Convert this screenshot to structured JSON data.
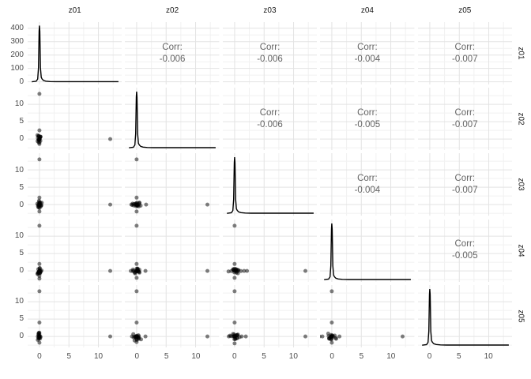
{
  "figure": {
    "kind": "scatterplot-matrix",
    "background": "#ffffff"
  },
  "colors": {
    "grid_major": "#e3e3e3",
    "grid_minor": "#f1f1f1",
    "axis_text": "#4d4d4d",
    "strip_text": "#1a1a1a",
    "corr_text": "#646464",
    "point": "#000000",
    "density_line": "#000000"
  },
  "chart_data": {
    "type": "scatter",
    "subtype": "pairs-matrix",
    "title": "",
    "variables": [
      "z01",
      "z02",
      "z03",
      "z04",
      "z05"
    ],
    "strip_labels_top": [
      "z01",
      "z02",
      "z03",
      "z04",
      "z05"
    ],
    "strip_labels_right": [
      "z01",
      "z02",
      "z03",
      "z04",
      "z05"
    ],
    "layout": {
      "diagonal": "density",
      "upper": "correlation",
      "lower": "scatter",
      "grid": "major+minor",
      "legend": "none"
    },
    "x_ticks": [
      0,
      5,
      10
    ],
    "y_ticks_scatter": [
      0,
      5,
      10
    ],
    "y_ticks_first_row": [
      0,
      100,
      200,
      300,
      400
    ],
    "x_domain": [
      -2,
      14
    ],
    "y_domain_scatter": [
      -3.2,
      14.8
    ],
    "y_domain_first_row": [
      -21,
      446
    ],
    "x_minor_ticks": [
      -2.5,
      2.5,
      7.5,
      12.5
    ],
    "y_minor_ticks_scatter": [
      -2.5,
      2.5,
      7.5,
      12.5
    ],
    "y_minor_ticks_first_row": [
      50,
      150,
      250,
      350
    ],
    "corr_label": "Corr:",
    "correlations": [
      {
        "x": "z02",
        "y": "z01",
        "value": "-0.006"
      },
      {
        "x": "z03",
        "y": "z01",
        "value": "-0.006"
      },
      {
        "x": "z04",
        "y": "z01",
        "value": "-0.004"
      },
      {
        "x": "z05",
        "y": "z01",
        "value": "-0.007"
      },
      {
        "x": "z03",
        "y": "z02",
        "value": "-0.006"
      },
      {
        "x": "z04",
        "y": "z02",
        "value": "-0.005"
      },
      {
        "x": "z05",
        "y": "z02",
        "value": "-0.007"
      },
      {
        "x": "z04",
        "y": "z03",
        "value": "-0.004"
      },
      {
        "x": "z05",
        "y": "z03",
        "value": "-0.007"
      },
      {
        "x": "z05",
        "y": "z04",
        "value": "-0.005"
      }
    ],
    "diagonals": [
      {
        "var": "z01",
        "type": "density",
        "peak_x": 0,
        "peak_value": 420,
        "own_y_axis": true
      },
      {
        "var": "z02",
        "type": "density",
        "peak_x": 0
      },
      {
        "var": "z03",
        "type": "density",
        "peak_x": 0
      },
      {
        "var": "z04",
        "type": "density",
        "peak_x": 0
      },
      {
        "var": "z05",
        "type": "density",
        "peak_x": 0
      }
    ],
    "density_shape": [
      [
        -1.3,
        0
      ],
      [
        -0.55,
        0.01
      ],
      [
        -0.3,
        0.05
      ],
      [
        -0.17,
        0.25
      ],
      [
        -0.06,
        0.9
      ],
      [
        0,
        1
      ],
      [
        0.06,
        0.9
      ],
      [
        0.17,
        0.25
      ],
      [
        0.3,
        0.08
      ],
      [
        0.45,
        0.05
      ],
      [
        0.7,
        0.025
      ],
      [
        1.1,
        0.012
      ],
      [
        1.8,
        0.005
      ],
      [
        2.8,
        0.003
      ],
      [
        13.4,
        0.003
      ]
    ],
    "scatter_panels": [
      {
        "y": "z02",
        "x": "z01",
        "cluster": {
          "cx": 0,
          "cy": 0,
          "n": 18,
          "sx": 0.3,
          "sy": 1.0
        },
        "outliers": [
          [
            0,
            13
          ],
          [
            0,
            2.5
          ],
          [
            12,
            0
          ],
          [
            0,
            -1.4
          ]
        ]
      },
      {
        "y": "z03",
        "x": "z01",
        "cluster": {
          "cx": 0,
          "cy": 0,
          "n": 18,
          "sx": 0.3,
          "sy": 1.1
        },
        "outliers": [
          [
            0,
            13
          ],
          [
            0,
            2
          ],
          [
            12,
            0
          ],
          [
            0,
            -2
          ]
        ]
      },
      {
        "y": "z03",
        "x": "z02",
        "cluster": {
          "cx": 0,
          "cy": 0,
          "n": 18,
          "sx": 0.6,
          "sy": 0.8
        },
        "outliers": [
          [
            0,
            13
          ],
          [
            0,
            2
          ],
          [
            1.6,
            0
          ],
          [
            -0.9,
            0
          ],
          [
            12,
            0
          ],
          [
            0,
            -2
          ]
        ]
      },
      {
        "y": "z04",
        "x": "z01",
        "cluster": {
          "cx": 0,
          "cy": 0,
          "n": 18,
          "sx": 0.3,
          "sy": 1.0
        },
        "outliers": [
          [
            0,
            13
          ],
          [
            0,
            2
          ],
          [
            0,
            -1.4
          ],
          [
            0,
            -2.2
          ],
          [
            12,
            0
          ]
        ]
      },
      {
        "y": "z04",
        "x": "z02",
        "cluster": {
          "cx": 0,
          "cy": 0,
          "n": 18,
          "sx": 0.6,
          "sy": 0.8
        },
        "outliers": [
          [
            0,
            13
          ],
          [
            0,
            2
          ],
          [
            -1,
            0
          ],
          [
            1.5,
            0
          ],
          [
            0,
            -2
          ],
          [
            12,
            0
          ]
        ]
      },
      {
        "y": "z04",
        "x": "z03",
        "cluster": {
          "cx": 0,
          "cy": 0,
          "n": 18,
          "sx": 0.8,
          "sy": 0.7
        },
        "outliers": [
          [
            0,
            13
          ],
          [
            0,
            2
          ],
          [
            1.6,
            0
          ],
          [
            2.1,
            0
          ],
          [
            0,
            -2
          ],
          [
            12,
            0
          ]
        ]
      },
      {
        "y": "z05",
        "x": "z01",
        "cluster": {
          "cx": 0,
          "cy": 0,
          "n": 18,
          "sx": 0.3,
          "sy": 1.2
        },
        "outliers": [
          [
            0,
            13
          ],
          [
            0,
            4
          ],
          [
            12,
            0
          ],
          [
            0,
            -1.8
          ]
        ]
      },
      {
        "y": "z05",
        "x": "z02",
        "cluster": {
          "cx": 0,
          "cy": 0,
          "n": 18,
          "sx": 0.6,
          "sy": 0.9
        },
        "outliers": [
          [
            0,
            13
          ],
          [
            0,
            4
          ],
          [
            1.5,
            0
          ],
          [
            -0.8,
            0
          ],
          [
            0,
            -1.6
          ],
          [
            12,
            0
          ]
        ]
      },
      {
        "y": "z05",
        "x": "z03",
        "cluster": {
          "cx": 0,
          "cy": 0,
          "n": 18,
          "sx": 0.7,
          "sy": 0.8
        },
        "outliers": [
          [
            0,
            13
          ],
          [
            0,
            4
          ],
          [
            -1,
            0
          ],
          [
            1.2,
            0
          ],
          [
            1.9,
            0
          ],
          [
            0,
            -2
          ],
          [
            12,
            0
          ]
        ]
      },
      {
        "y": "z05",
        "x": "z04",
        "cluster": {
          "cx": 0,
          "cy": 0,
          "n": 18,
          "sx": 0.6,
          "sy": 0.8
        },
        "outliers": [
          [
            0,
            13
          ],
          [
            0,
            4
          ],
          [
            -1.6,
            0
          ],
          [
            -2.1,
            0
          ],
          [
            1.3,
            0
          ],
          [
            0,
            -1.8
          ],
          [
            12,
            0
          ]
        ]
      }
    ],
    "point_style": {
      "radius": 2.5,
      "opacity": 0.5
    }
  }
}
